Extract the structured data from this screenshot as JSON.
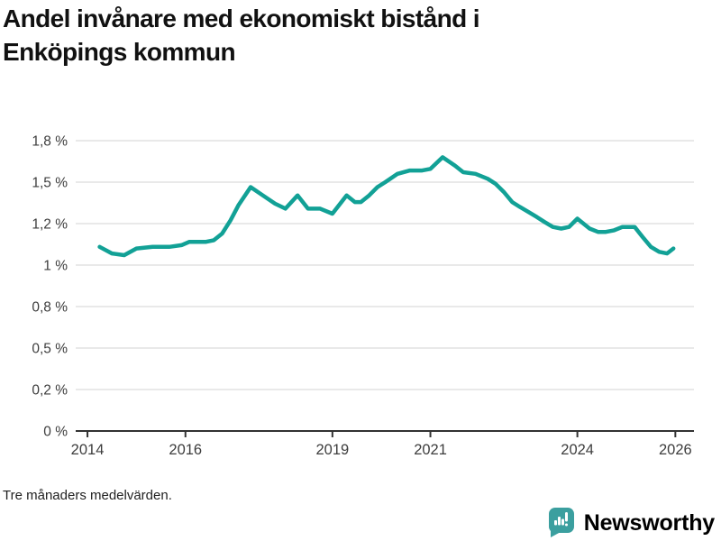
{
  "title": "Andel invånare med ekonomiskt bistånd i Enköpings kommun",
  "title_lines": [
    "Andel invånare med ekonomiskt bistånd i",
    "Enköpings kommun"
  ],
  "footer": {
    "note": "Tre månaders medelvärden."
  },
  "branding": {
    "logo_text": "Newsworthy",
    "logo_icon": "bar-chart-speech-bubble-icon",
    "logo_color": "#3b9f9f"
  },
  "colors": {
    "line": "#12a196",
    "grid": "#dcdcdc",
    "axis": "#333333",
    "title_text": "#111111",
    "tick_text": "#3d3d3d"
  },
  "chart_data": {
    "type": "line",
    "title": "Andel invånare med ekonomiskt bistånd i Enköpings kommun",
    "xlabel": "",
    "ylabel": "",
    "unit": "%",
    "grid": "horizontal",
    "legend": "none",
    "ylim": [
      0,
      1.75
    ],
    "xlim": [
      2013.76,
      2026.38
    ],
    "x_ticks": [
      2014,
      2016,
      2019,
      2021,
      2024,
      2026
    ],
    "y_ticks": [
      {
        "value": 0,
        "label": "0 %"
      },
      {
        "value": 0.25,
        "label": "0,2 %"
      },
      {
        "value": 0.5,
        "label": "0,5 %"
      },
      {
        "value": 0.75,
        "label": "0,8 %"
      },
      {
        "value": 1,
        "label": "1 %"
      },
      {
        "value": 1.25,
        "label": "1,2 %"
      },
      {
        "value": 1.5,
        "label": "1,5 %"
      },
      {
        "value": 1.75,
        "label": "1,8 %"
      }
    ],
    "series": [
      {
        "name": "Enköpings kommun",
        "points": [
          [
            2014.25,
            1.11
          ],
          [
            2014.5,
            1.07
          ],
          [
            2014.75,
            1.06
          ],
          [
            2015.0,
            1.1
          ],
          [
            2015.33,
            1.11
          ],
          [
            2015.67,
            1.11
          ],
          [
            2015.92,
            1.12
          ],
          [
            2016.08,
            1.14
          ],
          [
            2016.42,
            1.14
          ],
          [
            2016.58,
            1.15
          ],
          [
            2016.75,
            1.19
          ],
          [
            2016.92,
            1.27
          ],
          [
            2017.08,
            1.36
          ],
          [
            2017.33,
            1.47
          ],
          [
            2017.58,
            1.42
          ],
          [
            2017.83,
            1.37
          ],
          [
            2018.04,
            1.34
          ],
          [
            2018.29,
            1.42
          ],
          [
            2018.5,
            1.34
          ],
          [
            2018.75,
            1.34
          ],
          [
            2019.0,
            1.31
          ],
          [
            2019.29,
            1.42
          ],
          [
            2019.46,
            1.38
          ],
          [
            2019.58,
            1.38
          ],
          [
            2019.75,
            1.42
          ],
          [
            2019.92,
            1.47
          ],
          [
            2020.08,
            1.5
          ],
          [
            2020.33,
            1.55
          ],
          [
            2020.58,
            1.57
          ],
          [
            2020.83,
            1.57
          ],
          [
            2021.0,
            1.58
          ],
          [
            2021.25,
            1.65
          ],
          [
            2021.5,
            1.6
          ],
          [
            2021.67,
            1.56
          ],
          [
            2021.92,
            1.55
          ],
          [
            2022.17,
            1.52
          ],
          [
            2022.33,
            1.49
          ],
          [
            2022.5,
            1.44
          ],
          [
            2022.67,
            1.38
          ],
          [
            2022.83,
            1.35
          ],
          [
            2023.0,
            1.32
          ],
          [
            2023.17,
            1.29
          ],
          [
            2023.33,
            1.26
          ],
          [
            2023.5,
            1.23
          ],
          [
            2023.67,
            1.22
          ],
          [
            2023.83,
            1.23
          ],
          [
            2024.0,
            1.28
          ],
          [
            2024.25,
            1.22
          ],
          [
            2024.42,
            1.2
          ],
          [
            2024.58,
            1.2
          ],
          [
            2024.75,
            1.21
          ],
          [
            2024.92,
            1.23
          ],
          [
            2025.17,
            1.23
          ],
          [
            2025.33,
            1.17
          ],
          [
            2025.5,
            1.11
          ],
          [
            2025.67,
            1.08
          ],
          [
            2025.83,
            1.07
          ],
          [
            2025.96,
            1.1
          ]
        ]
      }
    ]
  }
}
